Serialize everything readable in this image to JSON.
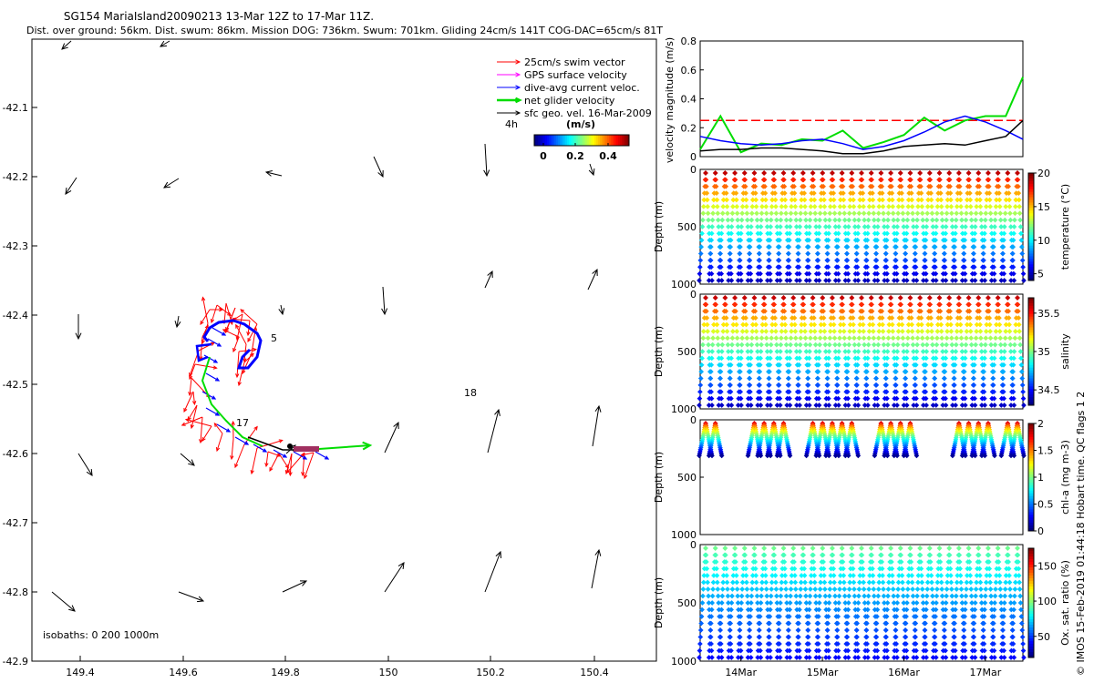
{
  "header": {
    "title": "SG154 MariaIsland20090213 13-Mar 12Z to 17-Mar 11Z.",
    "subtitle": "Dist. over ground: 56km. Dist. swum: 86km. Mission DOG: 736km. Swum: 701km. Gliding 24cm/s 141T COG-DAC=65cm/s 81T"
  },
  "credit": "© IMOS 15-Feb-2019 01:44:18 Hobart time. QC flags 1 2",
  "colors": {
    "swim": "#ff0000",
    "gps": "#ff00ff",
    "dac": "#0000ff",
    "net": "#00dd00",
    "sfc": "#000000",
    "track_blue": "#0000ff"
  },
  "legend": {
    "entries": [
      {
        "label": "25cm/s swim vector",
        "color": "#ff0000"
      },
      {
        "label": "GPS surface velocity",
        "color": "#ff00ff"
      },
      {
        "label": "dive-avg current veloc.",
        "color": "#0000ff"
      },
      {
        "label": "net glider velocity",
        "color": "#00dd00"
      },
      {
        "label": "sfc geo. vel. 16-Mar-2009",
        "color": "#000000"
      }
    ],
    "scale_label": "4h",
    "colorbar_title": "(m/s)",
    "colorbar_ticks": [
      "0",
      "0.2",
      "0.4"
    ]
  },
  "map": {
    "isobaths_label": "isobaths: 0   200  1000m",
    "x_ticks": [
      "149.4",
      "149.6",
      "149.8",
      "150",
      "150.2",
      "150.4"
    ],
    "y_ticks": [
      "-42.1",
      "-42.2",
      "-42.3",
      "-42.4",
      "-42.5",
      "-42.6",
      "-42.7",
      "-42.8",
      "-42.9"
    ],
    "track_labels": [
      "5",
      "17",
      "18"
    ]
  },
  "panels": {
    "p1": {
      "ylabel": "velocity magnitude (m/s)",
      "yticks": [
        "0.8",
        "0.6",
        "0.4",
        "0.2",
        "0"
      ]
    },
    "p2": {
      "ylabel": "Depth (m)",
      "clabel": "temperature (°C)",
      "yticks": [
        "0",
        "500",
        "1000"
      ],
      "cticks": [
        "20",
        "15",
        "10",
        "5"
      ]
    },
    "p3": {
      "ylabel": "Depth (m)",
      "clabel": "salinity",
      "yticks": [
        "0",
        "500",
        "1000"
      ],
      "cticks": [
        "35.5",
        "35",
        "34.5"
      ]
    },
    "p4": {
      "ylabel": "Depth (m)",
      "clabel": "chl-a (mg m-3)",
      "yticks": [
        "0",
        "500",
        "1000"
      ],
      "cticks": [
        "2",
        "1.5",
        "1",
        "0.5",
        "0"
      ]
    },
    "p5": {
      "ylabel": "Depth (m)",
      "clabel": "Ox. sat. ratio (%)",
      "yticks": [
        "0",
        "500",
        "1000"
      ],
      "cticks": [
        "150",
        "100",
        "50"
      ]
    },
    "x_ticks": [
      "14Mar",
      "15Mar",
      "16Mar",
      "17Mar"
    ]
  },
  "chart_data": [
    {
      "type": "line",
      "title": "velocity magnitude (m/s)",
      "ylabel": "velocity magnitude (m/s)",
      "ylim": [
        0,
        0.8
      ],
      "x_days": [
        13.5,
        13.75,
        14.0,
        14.25,
        14.5,
        14.75,
        15.0,
        15.25,
        15.5,
        15.75,
        16.0,
        16.25,
        16.5,
        16.75,
        17.0,
        17.25,
        17.46
      ],
      "series": [
        {
          "name": "25cm/s swim vector",
          "color": "#ff0000",
          "values": [
            0.25,
            0.25,
            0.25,
            0.25,
            0.25,
            0.25,
            0.25,
            0.25,
            0.25,
            0.25,
            0.25,
            0.25,
            0.25,
            0.25,
            0.25,
            0.25,
            0.25
          ]
        },
        {
          "name": "net glider velocity",
          "color": "#00dd00",
          "values": [
            0.05,
            0.28,
            0.03,
            0.09,
            0.08,
            0.12,
            0.11,
            0.18,
            0.06,
            0.1,
            0.15,
            0.27,
            0.18,
            0.25,
            0.28,
            0.28,
            0.55
          ]
        },
        {
          "name": "dive-avg current veloc.",
          "color": "#0000ff",
          "values": [
            0.14,
            0.11,
            0.09,
            0.08,
            0.09,
            0.11,
            0.12,
            0.09,
            0.05,
            0.07,
            0.11,
            0.17,
            0.24,
            0.28,
            0.24,
            0.18,
            0.12
          ]
        },
        {
          "name": "sfc",
          "color": "#000000",
          "values": [
            0.04,
            0.05,
            0.05,
            0.06,
            0.06,
            0.05,
            0.04,
            0.02,
            0.02,
            0.04,
            0.07,
            0.08,
            0.09,
            0.08,
            0.11,
            0.14,
            0.25
          ]
        }
      ]
    },
    {
      "type": "heatmap",
      "clabel": "temperature (°C)",
      "crange": [
        4,
        20
      ],
      "surface_value": 19,
      "deep_value": 5,
      "max_depth_m": 1000
    },
    {
      "type": "heatmap",
      "clabel": "salinity",
      "crange": [
        34.3,
        35.7
      ],
      "surface_value": 35.6,
      "deep_value": 34.4,
      "max_depth_m": 1000
    },
    {
      "type": "heatmap",
      "clabel": "chl-a (mg m-3)",
      "crange": [
        0,
        2
      ],
      "surface_value": 1.8,
      "deep_value": 0.05,
      "max_depth_m": 300
    },
    {
      "type": "heatmap",
      "clabel": "Ox. sat. ratio (%)",
      "crange": [
        20,
        175
      ],
      "surface_value": 95,
      "deep_value": 40,
      "max_depth_m": 1000
    }
  ]
}
